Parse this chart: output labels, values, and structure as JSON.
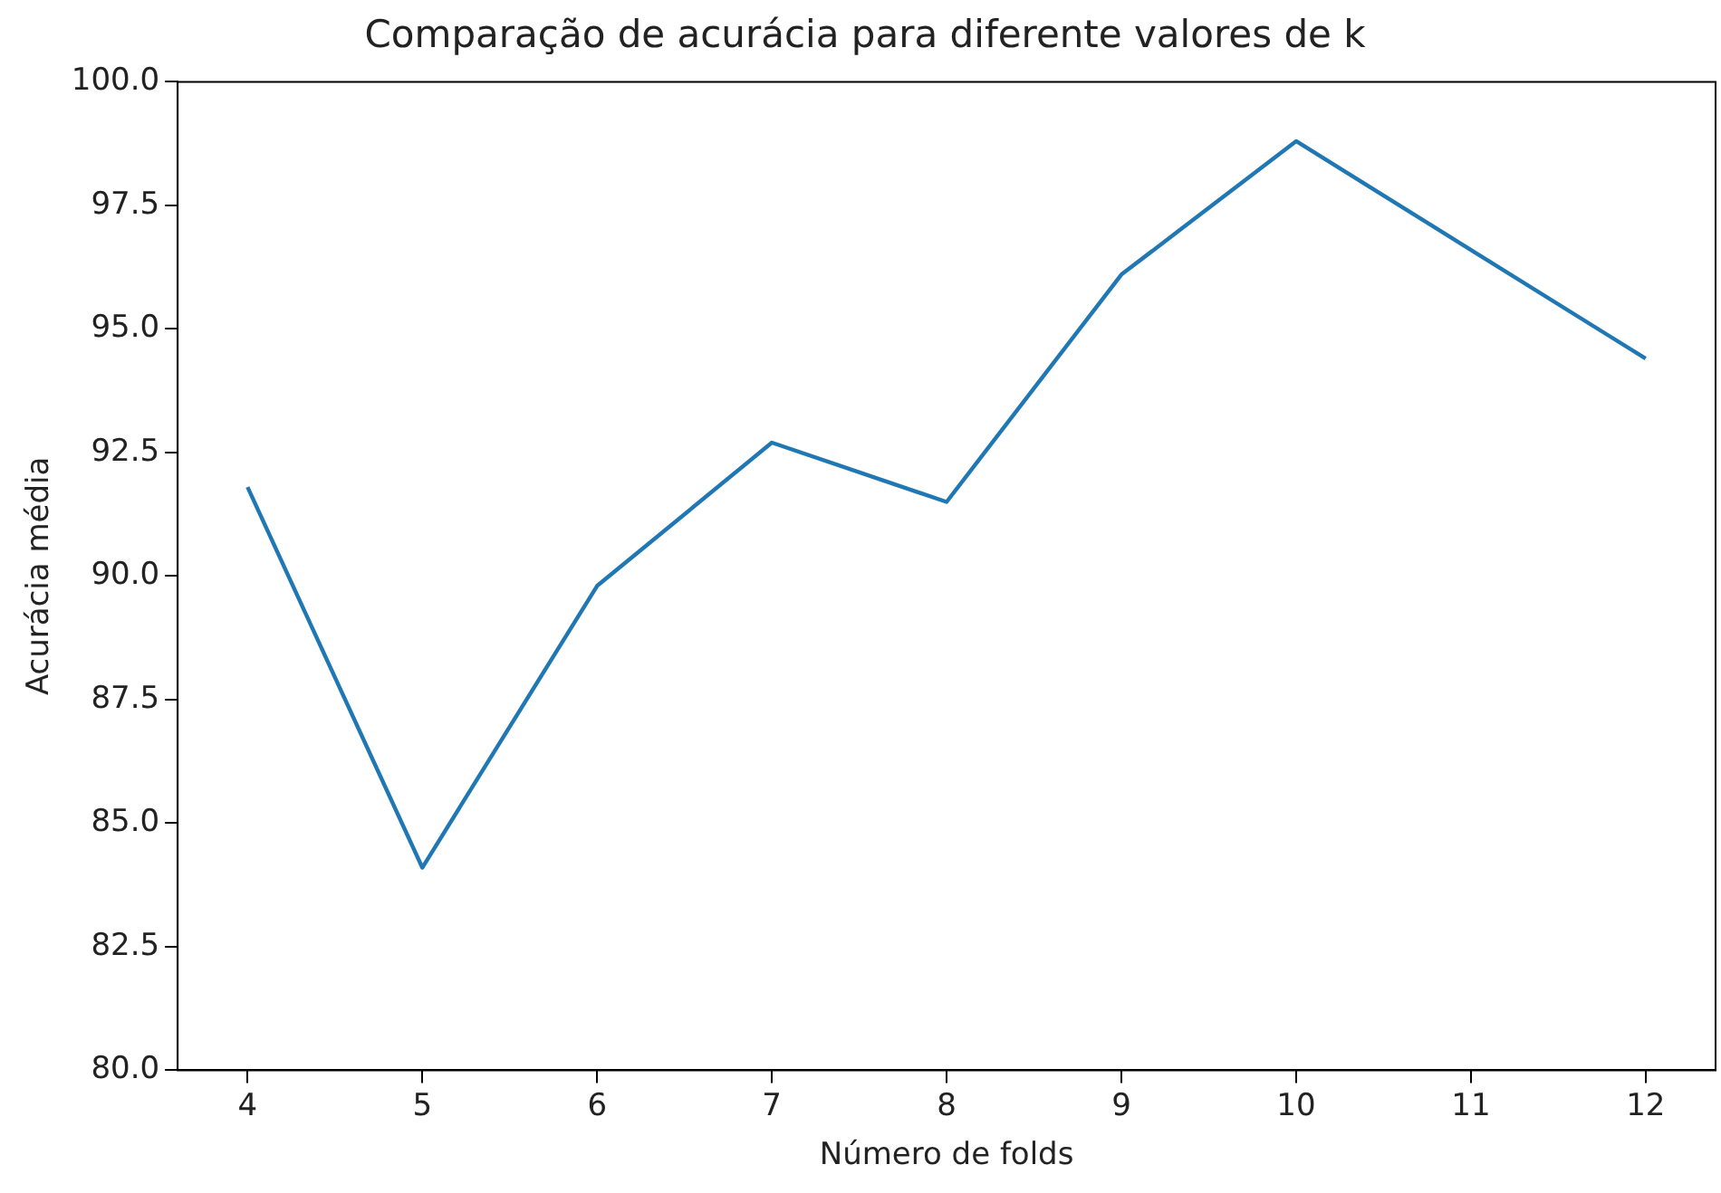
{
  "chart_data": {
    "type": "line",
    "title": "Comparação de acurácia para diferente valores de k",
    "xlabel": "Número de folds",
    "ylabel": "Acurácia média",
    "x": [
      4,
      5,
      6,
      7,
      8,
      9,
      10,
      11,
      12
    ],
    "series": [
      {
        "color": "#1f77b4",
        "values": [
          91.8,
          84.1,
          89.8,
          92.7,
          91.5,
          96.1,
          98.8,
          96.6,
          94.4
        ]
      }
    ],
    "xlim": [
      3.6,
      12.4
    ],
    "xticks": [
      4,
      5,
      6,
      7,
      8,
      9,
      10,
      11,
      12
    ],
    "ylim": [
      80,
      100
    ],
    "yticks": [
      {
        "value": 80,
        "label": "80.0"
      },
      {
        "value": 82.5,
        "label": "82.5"
      },
      {
        "value": 85,
        "label": "85.0"
      },
      {
        "value": 87.5,
        "label": "87.5"
      },
      {
        "value": 90,
        "label": "90.0"
      },
      {
        "value": 92.5,
        "label": "92.5"
      },
      {
        "value": 95,
        "label": "95.0"
      },
      {
        "value": 97.5,
        "label": "97.5"
      },
      {
        "value": 100,
        "label": "100.0"
      }
    ],
    "grid": false,
    "legend": false,
    "marker": "none",
    "line_style": "solid"
  }
}
